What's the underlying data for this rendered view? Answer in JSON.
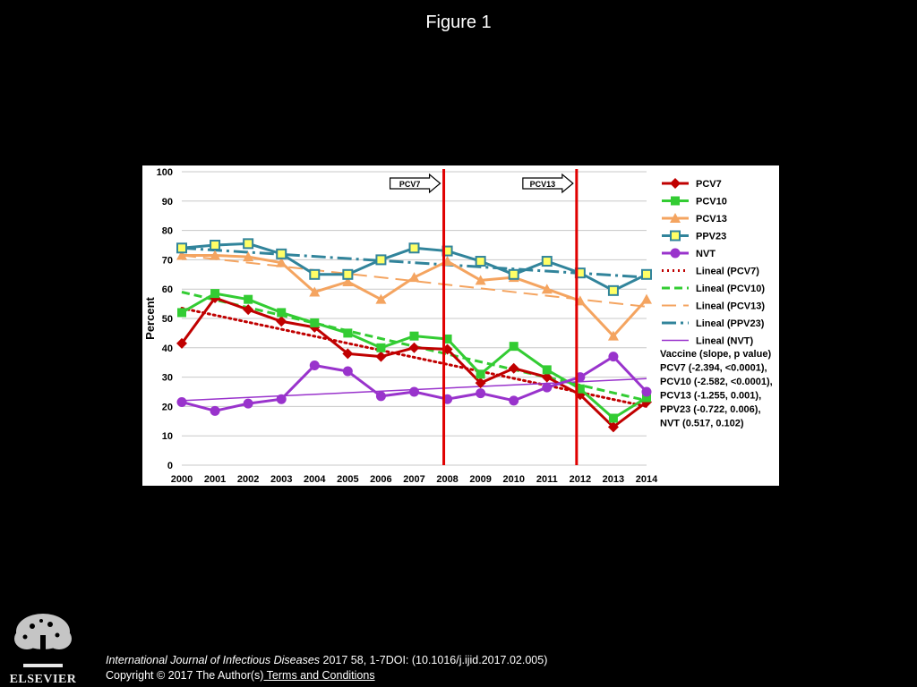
{
  "slide": {
    "title": "Figure 1",
    "citation_journal": "International Journal of Infectious Diseases",
    "citation_rest": " 2017 58, 1-7DOI: (10.1016/j.ijid.2017.02.005)",
    "copyright": "Copyright © 2017 The Author(s)",
    "terms_link": " Terms and Conditions",
    "publisher_logo_text": "ELSEVIER"
  },
  "chart_data": {
    "type": "line",
    "xlabel": "",
    "ylabel": "Percent",
    "ylim": [
      0,
      100
    ],
    "yticks": [
      0,
      10,
      20,
      30,
      40,
      50,
      60,
      70,
      80,
      90,
      100
    ],
    "x": [
      "2000",
      "2001",
      "2002",
      "2003",
      "2004",
      "2005",
      "2006",
      "2007",
      "2008",
      "2009",
      "2010",
      "2011",
      "2012",
      "2013",
      "2014"
    ],
    "grid": true,
    "legend_position": "right",
    "series": [
      {
        "name": "PCV7",
        "color": "#c00000",
        "marker": "diamond",
        "values": [
          41.5,
          57,
          53,
          49,
          47,
          38,
          37,
          40,
          39.5,
          28,
          33,
          30,
          24,
          13,
          21.5
        ]
      },
      {
        "name": "PCV10",
        "color": "#33cc33",
        "marker": "square",
        "values": [
          52,
          58.5,
          56.5,
          52,
          48.5,
          45,
          40,
          44,
          43,
          31,
          40.5,
          32.5,
          26,
          16,
          23
        ]
      },
      {
        "name": "PCV13",
        "color": "#f4a460",
        "marker": "triangle",
        "values": [
          71.5,
          71.5,
          71,
          69,
          59,
          62.5,
          56.5,
          64,
          69.5,
          63,
          64,
          60,
          56,
          44,
          56.5
        ]
      },
      {
        "name": "PPV23",
        "color": "#31849b",
        "marker": "square-yellow",
        "values": [
          74,
          75,
          75.5,
          72,
          65,
          65,
          70,
          74,
          73,
          69.5,
          65,
          69.5,
          65.5,
          59.5,
          65
        ]
      },
      {
        "name": "NVT",
        "color": "#9933cc",
        "marker": "circle",
        "values": [
          21.5,
          18.5,
          21,
          22.5,
          34,
          32,
          23.5,
          25,
          22.5,
          24.5,
          22,
          26.5,
          30,
          37,
          25
        ]
      }
    ],
    "trendlines": [
      {
        "name": "Lineal (PCV7)",
        "color": "#c00000",
        "style": "dotted",
        "start": 53.5,
        "end": 20
      },
      {
        "name": "Lineal (PCV10)",
        "color": "#33cc33",
        "style": "dashed",
        "start": 59,
        "end": 22
      },
      {
        "name": "Lineal (PCV13)",
        "color": "#f4a460",
        "style": "long-dash",
        "start": 71.5,
        "end": 54
      },
      {
        "name": "Lineal (PPV23)",
        "color": "#31849b",
        "style": "dash-dot",
        "start": 74,
        "end": 64
      },
      {
        "name": "Lineal (NVT)",
        "color": "#9933cc",
        "style": "solid",
        "start": 22,
        "end": 29.5
      }
    ],
    "vaccine_introductions": [
      {
        "label": "PCV7",
        "year": "2008"
      },
      {
        "label": "PCV13",
        "year": "2012"
      }
    ],
    "stats_box": [
      "Vaccine (slope, p value)",
      "PCV7 (-2.394, <0.0001),",
      "PCV10 (-2.582, <0.0001),",
      "PCV13 (-1.255, 0.001),",
      "PPV23 (-0.722,  0.006),",
      "NVT (0.517, 0.102)"
    ]
  }
}
